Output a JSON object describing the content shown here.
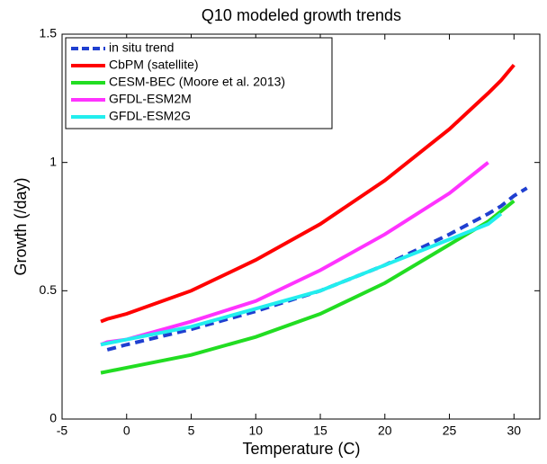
{
  "chart_data": {
    "type": "line",
    "title": "Q10 modeled growth trends",
    "x_label": "Temperature (C)",
    "y_label": "Growth (/day)",
    "x": [
      -2,
      -1.5,
      0,
      5,
      10,
      15,
      20,
      25,
      28,
      29,
      30,
      31
    ],
    "series": [
      {
        "name": "in situ trend",
        "color": "#1f3fd0",
        "linestyle": "dashed",
        "values": [
          null,
          0.27,
          0.29,
          0.35,
          0.42,
          0.5,
          0.6,
          0.72,
          0.8,
          0.83,
          0.87,
          0.9
        ]
      },
      {
        "name": "CbPM (satellite)",
        "color": "#ff0000",
        "linestyle": "solid",
        "values": [
          0.38,
          0.39,
          0.41,
          0.5,
          0.62,
          0.76,
          0.93,
          1.13,
          1.27,
          1.32,
          1.38,
          null
        ]
      },
      {
        "name": "CESM-BEC (Moore et al. 2013)",
        "color": "#22dd22",
        "linestyle": "solid",
        "values": [
          0.18,
          0.185,
          0.2,
          0.25,
          0.32,
          0.41,
          0.53,
          0.68,
          0.77,
          0.81,
          0.85,
          null
        ]
      },
      {
        "name": "GFDL-ESM2M",
        "color": "#ff33ff",
        "linestyle": "solid",
        "values": [
          0.29,
          0.3,
          0.31,
          0.38,
          0.46,
          0.58,
          0.72,
          0.88,
          1.0,
          null,
          null,
          null
        ]
      },
      {
        "name": "GFDL-ESM2G",
        "color": "#22eeee",
        "linestyle": "solid",
        "values": [
          0.29,
          0.295,
          0.31,
          0.36,
          0.43,
          0.5,
          0.6,
          0.7,
          0.76,
          0.8,
          null,
          null
        ]
      }
    ],
    "xlim": [
      -5,
      32
    ],
    "xticks": [
      -5,
      0,
      5,
      10,
      15,
      20,
      25,
      30
    ],
    "ylim": [
      0,
      1.5
    ],
    "yticks": [
      0,
      0.5,
      1,
      1.5
    ],
    "grid": false,
    "legend": "upper left"
  }
}
